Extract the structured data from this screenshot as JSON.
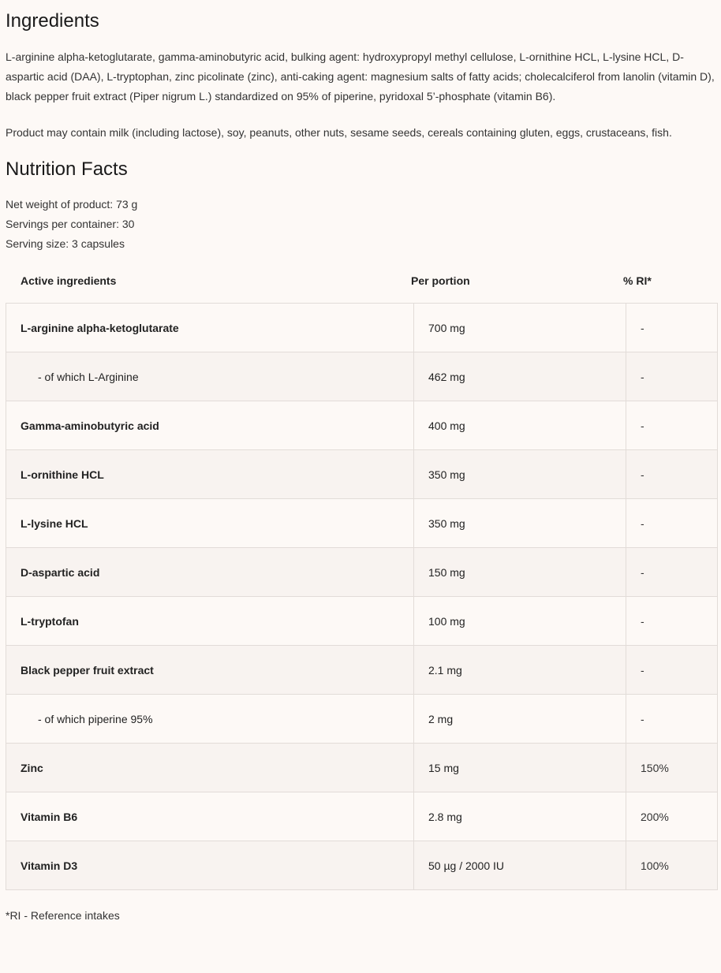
{
  "ingredients": {
    "title": "Ingredients",
    "text": "L-arginine alpha-ketoglutarate, gamma-aminobutyric acid, bulking agent: hydroxypropyl methyl cellulose, L-ornithine HCL, L-lysine HCL, D-aspartic acid (DAA), L-tryptophan, zinc picolinate (zinc), anti-caking agent: magnesium salts of fatty acids; cholecalciferol from lanolin (vitamin D), black pepper fruit extract (Piper nigrum L.) standardized on 95% of piperine, pyridoxal 5’-phosphate (vitamin B6).",
    "allergens": "Product may contain milk (including lactose), soy, peanuts, other nuts, sesame seeds, cereals containing gluten, eggs, crustaceans, fish."
  },
  "nutrition": {
    "title": "Nutrition Facts",
    "net_weight": "Net weight of product: 73 g",
    "servings": "Servings per container: 30",
    "serving_size": "Serving size: 3 capsules",
    "headers": [
      "Active ingredients",
      "Per portion",
      "% RI*"
    ],
    "rows": [
      {
        "name": "L-arginine alpha-ketoglutarate",
        "amount": "700 mg",
        "ri": "-",
        "sub": false
      },
      {
        "name": "- of which L-Arginine",
        "amount": "462 mg",
        "ri": "-",
        "sub": true
      },
      {
        "name": "Gamma-aminobutyric acid",
        "amount": "400 mg",
        "ri": "-",
        "sub": false
      },
      {
        "name": "L-ornithine HCL",
        "amount": "350 mg",
        "ri": "-",
        "sub": false
      },
      {
        "name": "L-lysine HCL",
        "amount": "350 mg",
        "ri": "-",
        "sub": false
      },
      {
        "name": "D-aspartic acid",
        "amount": "150 mg",
        "ri": "-",
        "sub": false
      },
      {
        "name": "L-tryptofan",
        "amount": "100 mg",
        "ri": "-",
        "sub": false
      },
      {
        "name": "Black pepper fruit extract",
        "amount": "2.1 mg",
        "ri": "-",
        "sub": false
      },
      {
        "name": "- of which piperine 95%",
        "amount": "2 mg",
        "ri": "-",
        "sub": true
      },
      {
        "name": "Zinc",
        "amount": "15 mg",
        "ri": "150%",
        "sub": false
      },
      {
        "name": "Vitamin B6",
        "amount": "2.8 mg",
        "ri": "200%",
        "sub": false
      },
      {
        "name": "Vitamin D3",
        "amount": "50 µg / 2000 IU",
        "ri": "100%",
        "sub": false
      }
    ],
    "footnote": "*RI - Reference intakes"
  }
}
